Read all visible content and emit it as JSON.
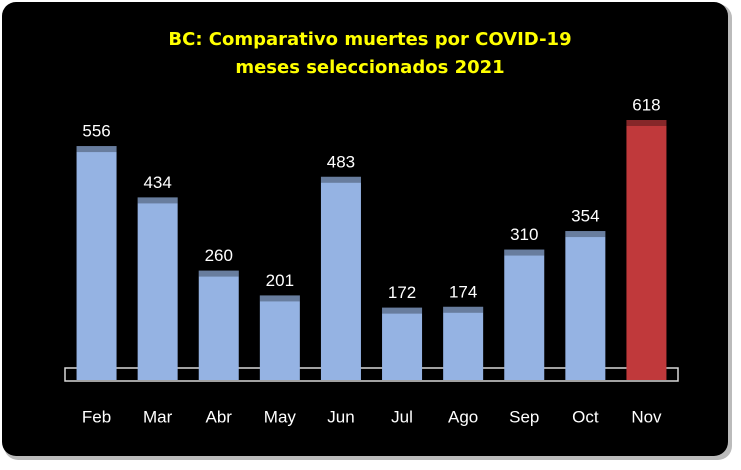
{
  "chart_data": {
    "type": "bar",
    "title": "BC: Comparativo  muertes por COVID-19",
    "subtitle": "meses seleccionados 2021",
    "categories": [
      "Feb",
      "Mar",
      "Abr",
      "May",
      "Jun",
      "Jul",
      "Ago",
      "Sep",
      "Oct",
      "Nov"
    ],
    "values": [
      556,
      434,
      260,
      201,
      483,
      172,
      174,
      310,
      354,
      618
    ],
    "colors": [
      "#95b3e3",
      "#95b3e3",
      "#95b3e3",
      "#95b3e3",
      "#95b3e3",
      "#95b3e3",
      "#95b3e3",
      "#95b3e3",
      "#95b3e3",
      "#c0393b"
    ]
  }
}
